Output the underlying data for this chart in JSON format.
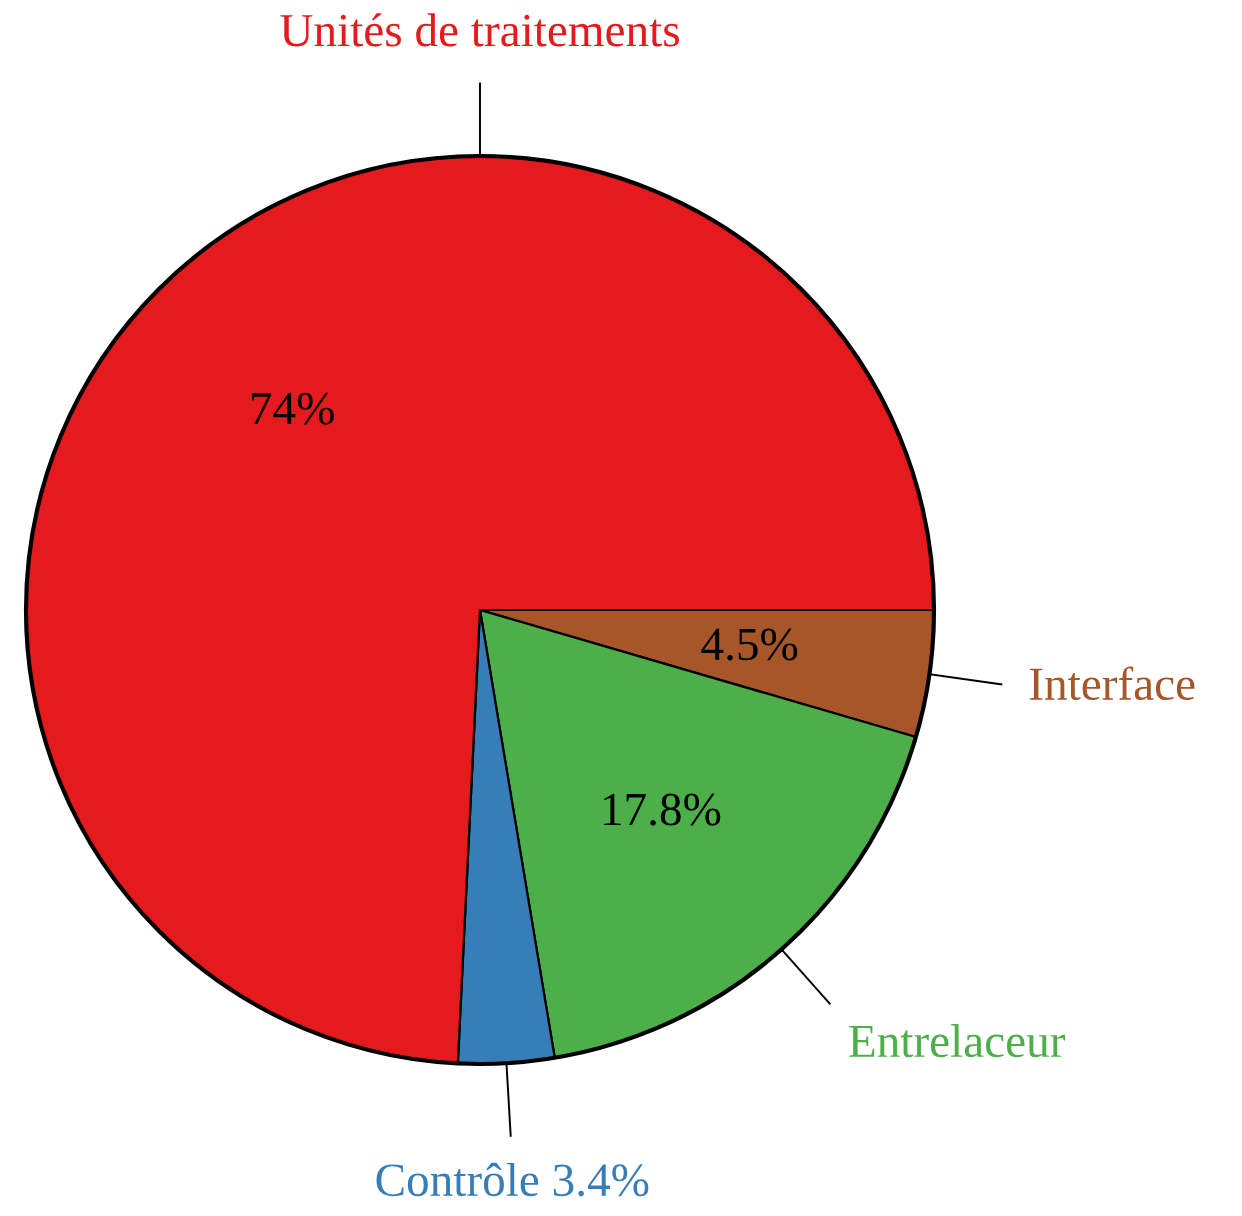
{
  "chart_data": {
    "type": "pie",
    "categories": [
      "Interface",
      "Entrelaceur",
      "Contrôle",
      "Unités de traitements"
    ],
    "values": [
      4.5,
      17.8,
      3.4,
      74
    ],
    "colors": [
      "#a65628",
      "#4daf4a",
      "#377eb8",
      "#e41a1c"
    ],
    "value_labels": [
      "4.5%",
      "17.8%",
      "3.4%",
      "74%"
    ]
  }
}
